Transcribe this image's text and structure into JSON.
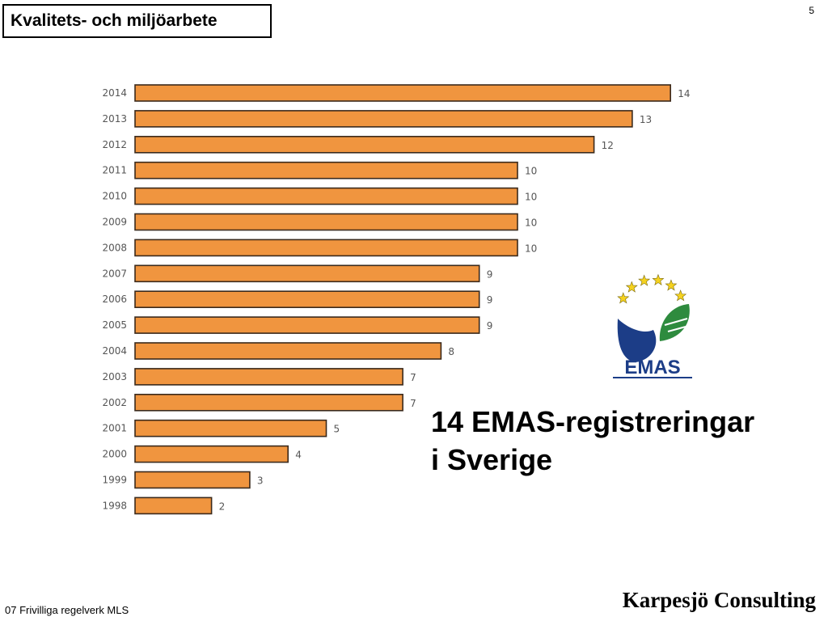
{
  "header": {
    "title": "Kvalitets- och miljöarbete",
    "page_number": "5"
  },
  "chart_data": {
    "type": "bar",
    "orientation": "horizontal",
    "categories": [
      "2014",
      "2013",
      "2012",
      "2011",
      "2010",
      "2009",
      "2008",
      "2007",
      "2006",
      "2005",
      "2004",
      "2003",
      "2002",
      "2001",
      "2000",
      "1999",
      "1998"
    ],
    "values": [
      14,
      13,
      12,
      10,
      10,
      10,
      10,
      9,
      9,
      9,
      8,
      7,
      7,
      5,
      4,
      3,
      2
    ],
    "title": "",
    "xlabel": "",
    "ylabel": "",
    "xlim": [
      0,
      14
    ],
    "grid": false,
    "legend": "none",
    "bar_color": "#f0953f",
    "bar_outline_color": "#3b2a1c"
  },
  "logo": {
    "text": "EMAS",
    "icon": "emas-star-circle-logo",
    "blue": "#1c3d87",
    "green": "#2e8b3e",
    "star_color": "#f5d21f"
  },
  "headline": {
    "line1": "14 EMAS-registreringar",
    "line2": "i Sverige"
  },
  "footer": {
    "left": "07 Frivilliga regelverk MLS",
    "right": "Karpesjö Consulting"
  }
}
